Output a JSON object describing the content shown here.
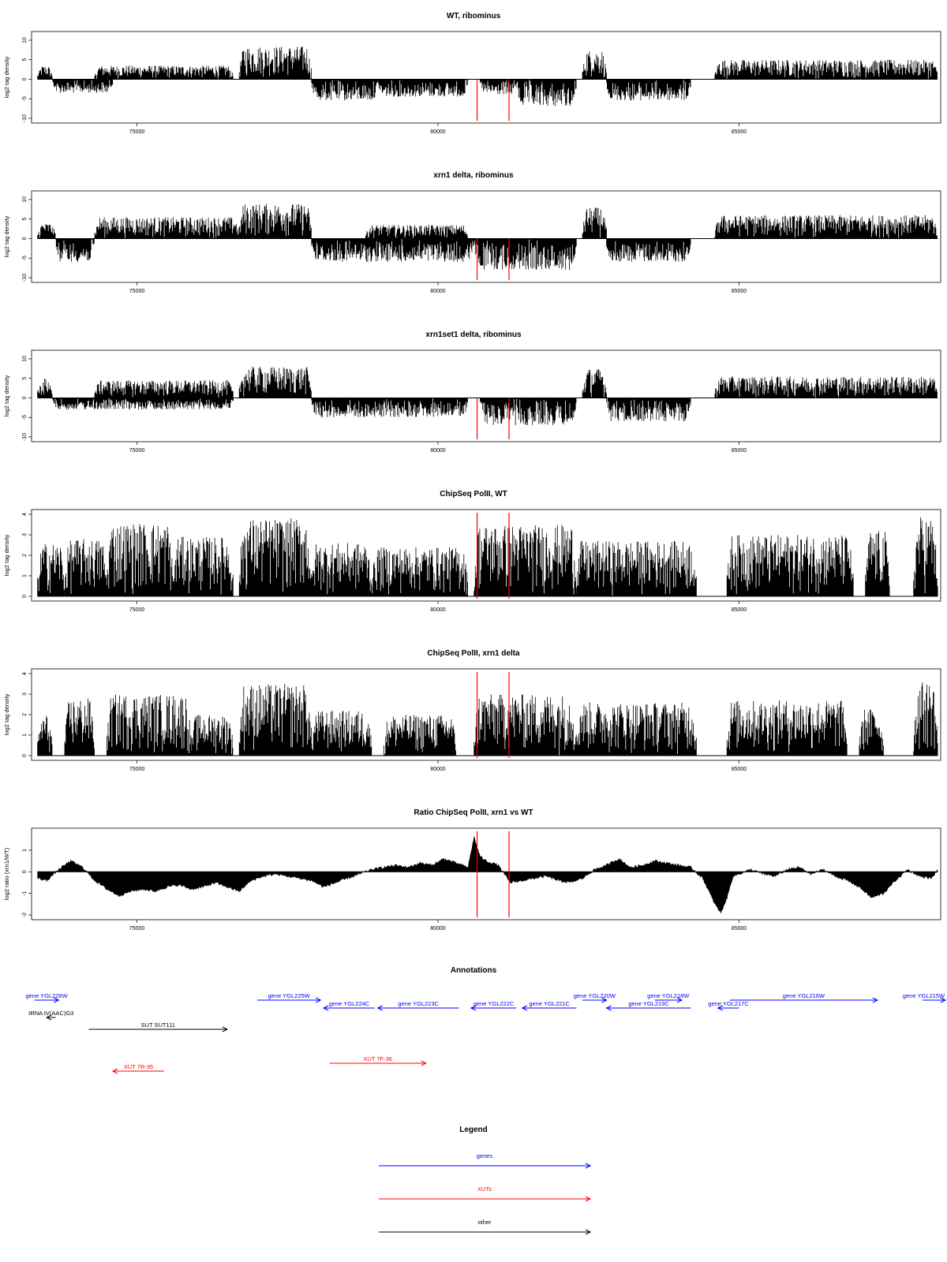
{
  "figure": {
    "x_ticks": [
      75000,
      80000,
      85000
    ],
    "x_range": [
      73250,
      88350
    ],
    "mark_positions": [
      80650,
      81180
    ],
    "colors": {
      "bars": "#000000",
      "mark": "#ff0000",
      "gene": "#0000ff",
      "xut": "#ff0000",
      "other": "#000000",
      "frame": "#000000"
    }
  },
  "chart_data": [
    {
      "type": "bar",
      "title": "WT, ribominus",
      "ylabel": "log2 tag density",
      "ylim": [
        -10,
        11
      ],
      "y_ticks": [
        -10,
        -5,
        0,
        5,
        10
      ],
      "grid": false,
      "series": [
        {
          "segments": [
            {
              "x": [
                73350,
                73600
              ],
              "y": 3.5,
              "sign": 1
            },
            {
              "x": [
                73600,
                74600
              ],
              "y": -3.5,
              "sign": -1
            },
            {
              "x": [
                74300,
                76600
              ],
              "y": 3.5,
              "sign": 1
            },
            {
              "x": [
                76700,
                77900
              ],
              "y": 8.5,
              "sign": 1
            },
            {
              "x": [
                77900,
                79000
              ],
              "y": -5.5,
              "sign": -1
            },
            {
              "x": [
                79000,
                80500
              ],
              "y": -4.5,
              "sign": -1
            },
            {
              "x": [
                80700,
                81300
              ],
              "y": -4.0,
              "sign": -1
            },
            {
              "x": [
                81300,
                82300
              ],
              "y": -7.0,
              "sign": -1
            },
            {
              "x": [
                82400,
                82800
              ],
              "y": 7.5,
              "sign": 1
            },
            {
              "x": [
                82800,
                84200
              ],
              "y": -5.5,
              "sign": -1
            },
            {
              "x": [
                84600,
                88300
              ],
              "y": 5.0,
              "sign": 1
            }
          ]
        }
      ]
    },
    {
      "type": "bar",
      "title": "xrn1 delta, ribominus",
      "ylabel": "log2 tag density",
      "ylim": [
        -10,
        11
      ],
      "y_ticks": [
        -10,
        -5,
        0,
        5,
        10
      ],
      "grid": false,
      "series": [
        {
          "segments": [
            {
              "x": [
                73350,
                73650
              ],
              "y": 4.0,
              "sign": 1
            },
            {
              "x": [
                73650,
                74300
              ],
              "y": -6.0,
              "sign": -1
            },
            {
              "x": [
                74300,
                76700
              ],
              "y": 5.5,
              "sign": 1
            },
            {
              "x": [
                76700,
                77900
              ],
              "y": 9.0,
              "sign": 1
            },
            {
              "x": [
                77900,
                80600
              ],
              "y": -6.0,
              "sign": -1
            },
            {
              "x": [
                78800,
                80500
              ],
              "y": 3.5,
              "sign": 1
            },
            {
              "x": [
                80600,
                82300
              ],
              "y": -8.0,
              "sign": -1
            },
            {
              "x": [
                82400,
                82800
              ],
              "y": 8.0,
              "sign": 1
            },
            {
              "x": [
                82800,
                84200
              ],
              "y": -6.0,
              "sign": -1
            },
            {
              "x": [
                84600,
                88300
              ],
              "y": 6.0,
              "sign": 1
            }
          ]
        }
      ]
    },
    {
      "type": "bar",
      "title": "xrn1set1 delta, ribominus",
      "ylabel": "log2 tag density",
      "ylim": [
        -10,
        11
      ],
      "y_ticks": [
        -10,
        -5,
        0,
        5,
        10
      ],
      "grid": false,
      "series": [
        {
          "segments": [
            {
              "x": [
                73350,
                73600
              ],
              "y": 5.0,
              "sign": 1
            },
            {
              "x": [
                73600,
                76600
              ],
              "y": -3.0,
              "sign": -1
            },
            {
              "x": [
                74300,
                76600
              ],
              "y": 4.5,
              "sign": 1
            },
            {
              "x": [
                76700,
                77900
              ],
              "y": 8.0,
              "sign": 1
            },
            {
              "x": [
                77900,
                80500
              ],
              "y": -5.0,
              "sign": -1
            },
            {
              "x": [
                80700,
                82300
              ],
              "y": -7.0,
              "sign": -1
            },
            {
              "x": [
                82400,
                82800
              ],
              "y": 7.5,
              "sign": 1
            },
            {
              "x": [
                82800,
                84200
              ],
              "y": -6.0,
              "sign": -1
            },
            {
              "x": [
                84600,
                88300
              ],
              "y": 5.5,
              "sign": 1
            }
          ]
        }
      ]
    },
    {
      "type": "bar",
      "title": "ChipSeq PolII, WT",
      "ylabel": "log2 tag density",
      "ylim": [
        0,
        4
      ],
      "y_ticks": [
        0,
        1,
        2,
        3,
        4
      ],
      "grid": false,
      "series": [
        {
          "segments": [
            {
              "x": [
                73350,
                73800
              ],
              "y": 2.6,
              "sign": 1
            },
            {
              "x": [
                73800,
                74500
              ],
              "y": 2.8,
              "sign": 1
            },
            {
              "x": [
                74500,
                75600
              ],
              "y": 3.6,
              "sign": 1
            },
            {
              "x": [
                75600,
                76600
              ],
              "y": 2.9,
              "sign": 1
            },
            {
              "x": [
                76700,
                77900
              ],
              "y": 3.8,
              "sign": 1
            },
            {
              "x": [
                77900,
                78900
              ],
              "y": 2.6,
              "sign": 1
            },
            {
              "x": [
                78900,
                80500
              ],
              "y": 2.4,
              "sign": 1
            },
            {
              "x": [
                80600,
                82300
              ],
              "y": 3.5,
              "sign": 1
            },
            {
              "x": [
                82300,
                84300
              ],
              "y": 2.7,
              "sign": 1
            },
            {
              "x": [
                84800,
                86900
              ],
              "y": 3.0,
              "sign": 1
            },
            {
              "x": [
                87100,
                87500
              ],
              "y": 3.2,
              "sign": 1
            },
            {
              "x": [
                87900,
                88300
              ],
              "y": 3.9,
              "sign": 1
            }
          ]
        }
      ]
    },
    {
      "type": "bar",
      "title": "ChipSeq PolII, xrn1 delta",
      "ylabel": "log2 tag density",
      "ylim": [
        0,
        4
      ],
      "y_ticks": [
        0,
        1,
        2,
        3,
        4
      ],
      "grid": false,
      "series": [
        {
          "segments": [
            {
              "x": [
                73350,
                73600
              ],
              "y": 2.0,
              "sign": 1
            },
            {
              "x": [
                73800,
                74300
              ],
              "y": 2.8,
              "sign": 1
            },
            {
              "x": [
                74500,
                75900
              ],
              "y": 3.0,
              "sign": 1
            },
            {
              "x": [
                75900,
                76600
              ],
              "y": 2.0,
              "sign": 1
            },
            {
              "x": [
                76700,
                77900
              ],
              "y": 3.5,
              "sign": 1
            },
            {
              "x": [
                77900,
                78900
              ],
              "y": 2.2,
              "sign": 1
            },
            {
              "x": [
                79100,
                80300
              ],
              "y": 2.0,
              "sign": 1
            },
            {
              "x": [
                80600,
                82300
              ],
              "y": 3.0,
              "sign": 1
            },
            {
              "x": [
                82300,
                84300
              ],
              "y": 2.6,
              "sign": 1
            },
            {
              "x": [
                84800,
                86800
              ],
              "y": 2.7,
              "sign": 1
            },
            {
              "x": [
                87000,
                87400
              ],
              "y": 2.3,
              "sign": 1
            },
            {
              "x": [
                87900,
                88300
              ],
              "y": 3.6,
              "sign": 1
            }
          ]
        }
      ]
    },
    {
      "type": "area",
      "title": "Ratio ChipSeq PolII, xrn1 vs WT",
      "ylabel": "log2 ratio (xrn1/WT)",
      "ylim": [
        -2,
        1.8
      ],
      "y_ticks": [
        -2,
        -1,
        0,
        1
      ],
      "grid": false,
      "series": [
        {
          "x": [
            73350,
            73500,
            73700,
            73900,
            74100,
            74300,
            74500,
            74700,
            74900,
            75100,
            75300,
            75500,
            75700,
            75900,
            76100,
            76300,
            76500,
            76700,
            76900,
            77100,
            77300,
            77500,
            77700,
            77900,
            78100,
            78300,
            78500,
            78700,
            78900,
            79100,
            79300,
            79500,
            79700,
            79900,
            80100,
            80300,
            80500,
            80600,
            80700,
            80800,
            81000,
            81200,
            81400,
            81600,
            81800,
            82000,
            82200,
            82400,
            82600,
            82800,
            83000,
            83200,
            83400,
            83600,
            83800,
            84000,
            84200,
            84400,
            84500,
            84600,
            84700,
            84800,
            84900,
            85000,
            85200,
            85400,
            85600,
            85800,
            86000,
            86200,
            86400,
            86600,
            86800,
            87000,
            87200,
            87400,
            87600,
            87800,
            88000,
            88200,
            88300
          ],
          "values": [
            -0.3,
            -0.4,
            0.1,
            0.5,
            0.2,
            -0.4,
            -0.8,
            -1.1,
            -0.9,
            -0.8,
            -0.9,
            -0.7,
            -0.6,
            -0.8,
            -0.7,
            -0.5,
            -0.7,
            -0.9,
            -0.4,
            -0.2,
            -0.1,
            -0.2,
            -0.3,
            -0.4,
            -0.7,
            -0.5,
            -0.3,
            -0.1,
            0.1,
            0.2,
            0.3,
            0.2,
            0.4,
            0.3,
            0.6,
            0.4,
            0.2,
            1.6,
            0.7,
            0.5,
            0.3,
            -0.5,
            -0.4,
            -0.3,
            -0.2,
            -0.4,
            -0.5,
            -0.3,
            0.1,
            0.3,
            0.6,
            0.2,
            0.3,
            0.5,
            0.4,
            0.3,
            0.2,
            -0.3,
            -0.9,
            -1.5,
            -1.9,
            -1.2,
            -0.2,
            -0.1,
            0.1,
            -0.1,
            -0.2,
            0.1,
            0.2,
            -0.1,
            0.1,
            -0.2,
            -0.4,
            -0.7,
            -1.2,
            -1.0,
            -0.4,
            0.1,
            -0.2,
            -0.3,
            0.1
          ]
        }
      ]
    }
  ],
  "annotations": {
    "title": "Annotations",
    "features": [
      {
        "label": "gene YGL226W",
        "kind": "gene",
        "dir": "right",
        "start": 73300,
        "end": 73700,
        "row": 0
      },
      {
        "label": "gene YGL225W",
        "kind": "gene",
        "dir": "right",
        "start": 77000,
        "end": 78050,
        "row": 0
      },
      {
        "label": "gene YGL224C",
        "kind": "gene",
        "dir": "left",
        "start": 78100,
        "end": 78950,
        "row": 1
      },
      {
        "label": "gene YGL223C",
        "kind": "gene",
        "dir": "left",
        "start": 79000,
        "end": 80350,
        "row": 1
      },
      {
        "label": "gene YGL222C",
        "kind": "gene",
        "dir": "left",
        "start": 80550,
        "end": 81300,
        "row": 1
      },
      {
        "label": "gene YGL221C",
        "kind": "gene",
        "dir": "left",
        "start": 81400,
        "end": 82300,
        "row": 1
      },
      {
        "label": "gene YGL220W",
        "kind": "gene",
        "dir": "right",
        "start": 82400,
        "end": 82800,
        "row": 0
      },
      {
        "label": "gene YGL219C",
        "kind": "gene",
        "dir": "left",
        "start": 82800,
        "end": 84200,
        "row": 1
      },
      {
        "label": "gene YGL218W",
        "kind": "gene",
        "dir": "right",
        "start": 83600,
        "end": 84050,
        "row": 0
      },
      {
        "label": "gene YGL217C",
        "kind": "gene",
        "dir": "left",
        "start": 84650,
        "end": 85000,
        "row": 1
      },
      {
        "label": "gene YGL216W",
        "kind": "gene",
        "dir": "right",
        "start": 84850,
        "end": 87300,
        "row": 0
      },
      {
        "label": "gene YGL215W",
        "kind": "gene",
        "dir": "right",
        "start": 88050,
        "end": 88600,
        "row": 0
      },
      {
        "label": "tRNA tV(AAC)G3",
        "kind": "other",
        "dir": "left",
        "start": 73500,
        "end": 73650,
        "row": 2
      },
      {
        "label": "SUT SUT111",
        "kind": "other",
        "dir": "right",
        "start": 74200,
        "end": 76500,
        "row": 3
      },
      {
        "label": "XUT 7F-36",
        "kind": "xut",
        "dir": "right",
        "start": 78200,
        "end": 79800,
        "row": 4
      },
      {
        "label": "XUT 7R-35",
        "kind": "xut",
        "dir": "left",
        "start": 74600,
        "end": 75450,
        "row": 5
      }
    ]
  },
  "legend": {
    "title": "Legend",
    "items": [
      {
        "label": "genes",
        "kind": "gene"
      },
      {
        "label": "XUTs",
        "kind": "xut"
      },
      {
        "label": "other",
        "kind": "other"
      }
    ]
  }
}
